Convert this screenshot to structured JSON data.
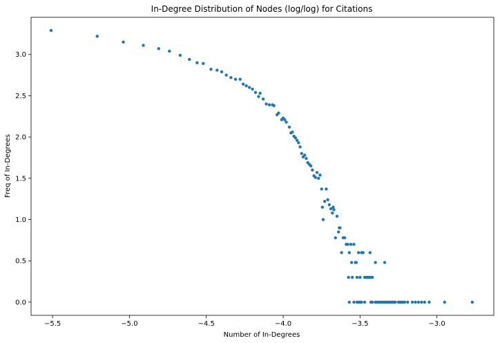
{
  "chart_data": {
    "type": "scatter",
    "title": "In-Degree Distribution of Nodes (log/log) for Citations",
    "xlabel": "Number of In-Degrees",
    "ylabel": "Freq of In-Degrees",
    "xlim": [
      -5.64,
      -2.63
    ],
    "ylim": [
      -0.16,
      3.45
    ],
    "xticks": [
      -5.5,
      -5.0,
      -4.5,
      -4.0,
      -3.5,
      -3.0
    ],
    "xtick_labels": [
      "−5.5",
      "−5.0",
      "−4.5",
      "−4.0",
      "−3.5",
      "−3.0"
    ],
    "yticks": [
      0.0,
      0.5,
      1.0,
      1.5,
      2.0,
      2.5,
      3.0
    ],
    "ytick_labels": [
      "0.0",
      "0.5",
      "1.0",
      "1.5",
      "2.0",
      "2.5",
      "3.0"
    ],
    "grid": false,
    "legend": "none",
    "marker_color": "#1f77b4",
    "points": [
      [
        -5.51,
        3.29
      ],
      [
        -5.21,
        3.22
      ],
      [
        -5.04,
        3.15
      ],
      [
        -4.91,
        3.11
      ],
      [
        -4.81,
        3.07
      ],
      [
        -4.74,
        3.04
      ],
      [
        -4.67,
        2.99
      ],
      [
        -4.61,
        2.94
      ],
      [
        -4.56,
        2.9
      ],
      [
        -4.52,
        2.89
      ],
      [
        -4.47,
        2.82
      ],
      [
        -4.43,
        2.81
      ],
      [
        -4.4,
        2.79
      ],
      [
        -4.37,
        2.75
      ],
      [
        -4.34,
        2.72
      ],
      [
        -4.31,
        2.7
      ],
      [
        -4.28,
        2.7
      ],
      [
        -4.26,
        2.64
      ],
      [
        -4.24,
        2.62
      ],
      [
        -4.22,
        2.6
      ],
      [
        -4.2,
        2.58
      ],
      [
        -4.18,
        2.54
      ],
      [
        -4.16,
        2.49
      ],
      [
        -4.15,
        2.53
      ],
      [
        -4.13,
        2.46
      ],
      [
        -4.11,
        2.4
      ],
      [
        -4.09,
        2.39
      ],
      [
        -4.07,
        2.39
      ],
      [
        -4.06,
        2.38
      ],
      [
        -4.04,
        2.27
      ],
      [
        -4.03,
        2.29
      ],
      [
        -4.01,
        2.21
      ],
      [
        -4.0,
        2.23
      ],
      [
        -3.99,
        2.21
      ],
      [
        -3.98,
        2.18
      ],
      [
        -3.96,
        2.12
      ],
      [
        -3.95,
        2.05
      ],
      [
        -3.94,
        2.06
      ],
      [
        -3.93,
        2.01
      ],
      [
        -3.92,
        1.99
      ],
      [
        -3.91,
        1.96
      ],
      [
        -3.9,
        1.93
      ],
      [
        -3.89,
        1.88
      ],
      [
        -3.88,
        1.8
      ],
      [
        -3.87,
        1.76
      ],
      [
        -3.86,
        1.78
      ],
      [
        -3.85,
        1.74
      ],
      [
        -3.84,
        1.69
      ],
      [
        -3.83,
        1.67
      ],
      [
        -3.82,
        1.65
      ],
      [
        -3.81,
        1.6
      ],
      [
        -3.8,
        1.53
      ],
      [
        -3.79,
        1.51
      ],
      [
        -3.78,
        1.57
      ],
      [
        -3.77,
        1.5
      ],
      [
        -3.76,
        1.54
      ],
      [
        -3.75,
        1.37
      ],
      [
        -3.745,
        1.15
      ],
      [
        -3.74,
        1.0
      ],
      [
        -3.73,
        1.22
      ],
      [
        -3.72,
        1.37
      ],
      [
        -3.71,
        1.24
      ],
      [
        -3.7,
        1.18
      ],
      [
        -3.69,
        1.13
      ],
      [
        -3.68,
        1.08
      ],
      [
        -3.675,
        1.15
      ],
      [
        -3.67,
        1.12
      ],
      [
        -3.66,
        0.78
      ],
      [
        -3.65,
        1.04
      ],
      [
        -3.64,
        0.85
      ],
      [
        -3.635,
        0.9
      ],
      [
        -3.63,
        0.9
      ],
      [
        -3.62,
        0.6
      ],
      [
        -3.61,
        0.78
      ],
      [
        -3.6,
        0.78
      ],
      [
        -3.59,
        0.7
      ],
      [
        -3.58,
        0.7
      ],
      [
        -3.575,
        0.3
      ],
      [
        -3.57,
        0.6
      ],
      [
        -3.56,
        0.7
      ],
      [
        -3.555,
        0.48
      ],
      [
        -3.55,
        0.3
      ],
      [
        -3.54,
        0.7
      ],
      [
        -3.53,
        0.48
      ],
      [
        -3.525,
        0.48
      ],
      [
        -3.52,
        0.3
      ],
      [
        -3.51,
        0.6
      ],
      [
        -3.5,
        0.3
      ],
      [
        -3.49,
        0.6
      ],
      [
        -3.48,
        0.6
      ],
      [
        -3.47,
        0.3
      ],
      [
        -3.46,
        0.3
      ],
      [
        -3.45,
        0.3
      ],
      [
        -3.44,
        0.3
      ],
      [
        -3.435,
        0.6
      ],
      [
        -3.43,
        0.3
      ],
      [
        -3.42,
        0.3
      ],
      [
        -3.4,
        0.48
      ],
      [
        -3.34,
        0.48
      ],
      [
        -3.57,
        0.0
      ],
      [
        -3.54,
        0.0
      ],
      [
        -3.52,
        0.0
      ],
      [
        -3.51,
        0.0
      ],
      [
        -3.5,
        0.0
      ],
      [
        -3.49,
        0.0
      ],
      [
        -3.47,
        0.0
      ],
      [
        -3.43,
        0.0
      ],
      [
        -3.42,
        0.0
      ],
      [
        -3.4,
        0.0
      ],
      [
        -3.39,
        0.0
      ],
      [
        -3.38,
        0.0
      ],
      [
        -3.37,
        0.0
      ],
      [
        -3.36,
        0.0
      ],
      [
        -3.35,
        0.0
      ],
      [
        -3.34,
        0.0
      ],
      [
        -3.33,
        0.0
      ],
      [
        -3.32,
        0.0
      ],
      [
        -3.31,
        0.0
      ],
      [
        -3.3,
        0.0
      ],
      [
        -3.29,
        0.0
      ],
      [
        -3.28,
        0.0
      ],
      [
        -3.27,
        0.0
      ],
      [
        -3.25,
        0.0
      ],
      [
        -3.24,
        0.0
      ],
      [
        -3.23,
        0.0
      ],
      [
        -3.22,
        0.0
      ],
      [
        -3.21,
        0.0
      ],
      [
        -3.19,
        0.0
      ],
      [
        -3.16,
        0.0
      ],
      [
        -3.14,
        0.0
      ],
      [
        -3.12,
        0.0
      ],
      [
        -3.1,
        0.0
      ],
      [
        -3.08,
        0.0
      ],
      [
        -3.05,
        0.0
      ],
      [
        -2.95,
        0.0
      ],
      [
        -2.77,
        0.0
      ]
    ]
  }
}
